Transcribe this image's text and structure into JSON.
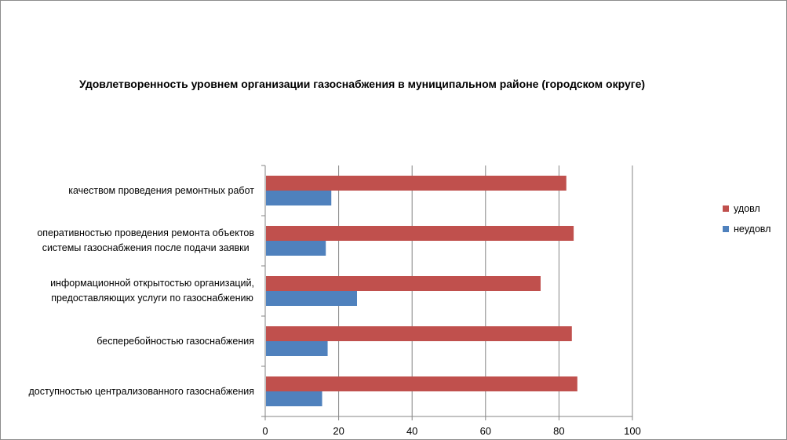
{
  "chart_data": {
    "type": "bar",
    "orientation": "horizontal",
    "title": "Удовлетворенность уровнем организации газоснабжения в муниципальном районе (городском округе)",
    "categories": [
      [
        "качеством проведения  ремонтных работ"
      ],
      [
        "оперативностью проведения ремонта объектов",
        "системы газоснабжения после подачи заявки"
      ],
      [
        "информационной открытостью организаций,",
        "предоставляющих услуги по газоснабжению"
      ],
      [
        "бесперебойностью  газоснабжения"
      ],
      [
        "доступностью централизованного газоснабжения"
      ]
    ],
    "series": [
      {
        "name": "удовл",
        "color": "#c0504d",
        "values": [
          82,
          84,
          75,
          83.5,
          85
        ]
      },
      {
        "name": "неудовл",
        "color": "#4f81bd",
        "values": [
          18,
          16.5,
          25,
          17,
          15.5
        ]
      }
    ],
    "xlim": [
      0,
      100
    ],
    "xticks": [
      "0",
      "20",
      "40",
      "60",
      "80",
      "100"
    ],
    "grid": true,
    "legend_position": "right",
    "axis_color": "#868686",
    "grid_color": "#868686"
  }
}
